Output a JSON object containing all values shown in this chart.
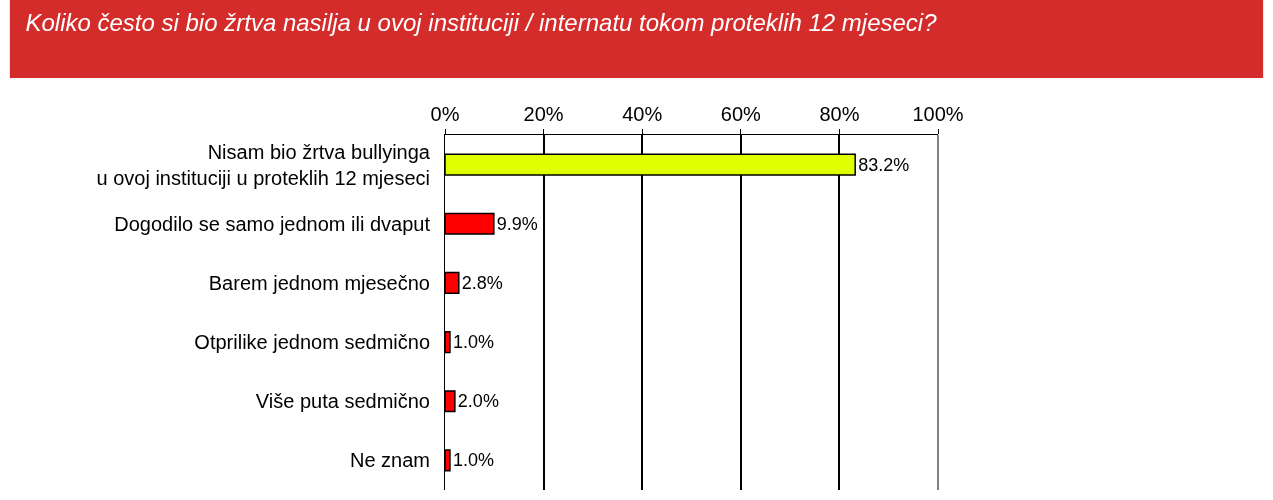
{
  "chart_data": {
    "type": "bar",
    "orientation": "horizontal",
    "title": "Koliko često si bio žrtva nasilja u ovoj instituciji / internatu tokom proteklih 12 mjeseci?",
    "categories": [
      "Nisam bio žrtva bullyinga\nu ovoj instituciji u proteklih 12 mjeseci",
      "Dogodilo se samo jednom ili dvaput",
      "Barem jednom mjesečno",
      "Otprilike jednom sedmično",
      "Više puta sedmično",
      "Ne znam"
    ],
    "values": [
      83.2,
      9.9,
      2.8,
      1.0,
      2.0,
      1.0
    ],
    "colors": [
      "#e0ff00",
      "#ff0000",
      "#ff0000",
      "#ff0000",
      "#ff0000",
      "#ff0000"
    ],
    "value_labels": [
      "83.2%",
      "9.9%",
      "2.8%",
      "1.0%",
      "2.0%",
      "1.0%"
    ],
    "xlim": [
      0,
      100
    ],
    "xticks": [
      {
        "value": 0,
        "label": "0%"
      },
      {
        "value": 20,
        "label": "20%"
      },
      {
        "value": 40,
        "label": "40%"
      },
      {
        "value": 60,
        "label": "60%"
      },
      {
        "value": 80,
        "label": "80%"
      },
      {
        "value": 100,
        "label": "100%"
      }
    ],
    "grid": "x",
    "legend": false
  }
}
